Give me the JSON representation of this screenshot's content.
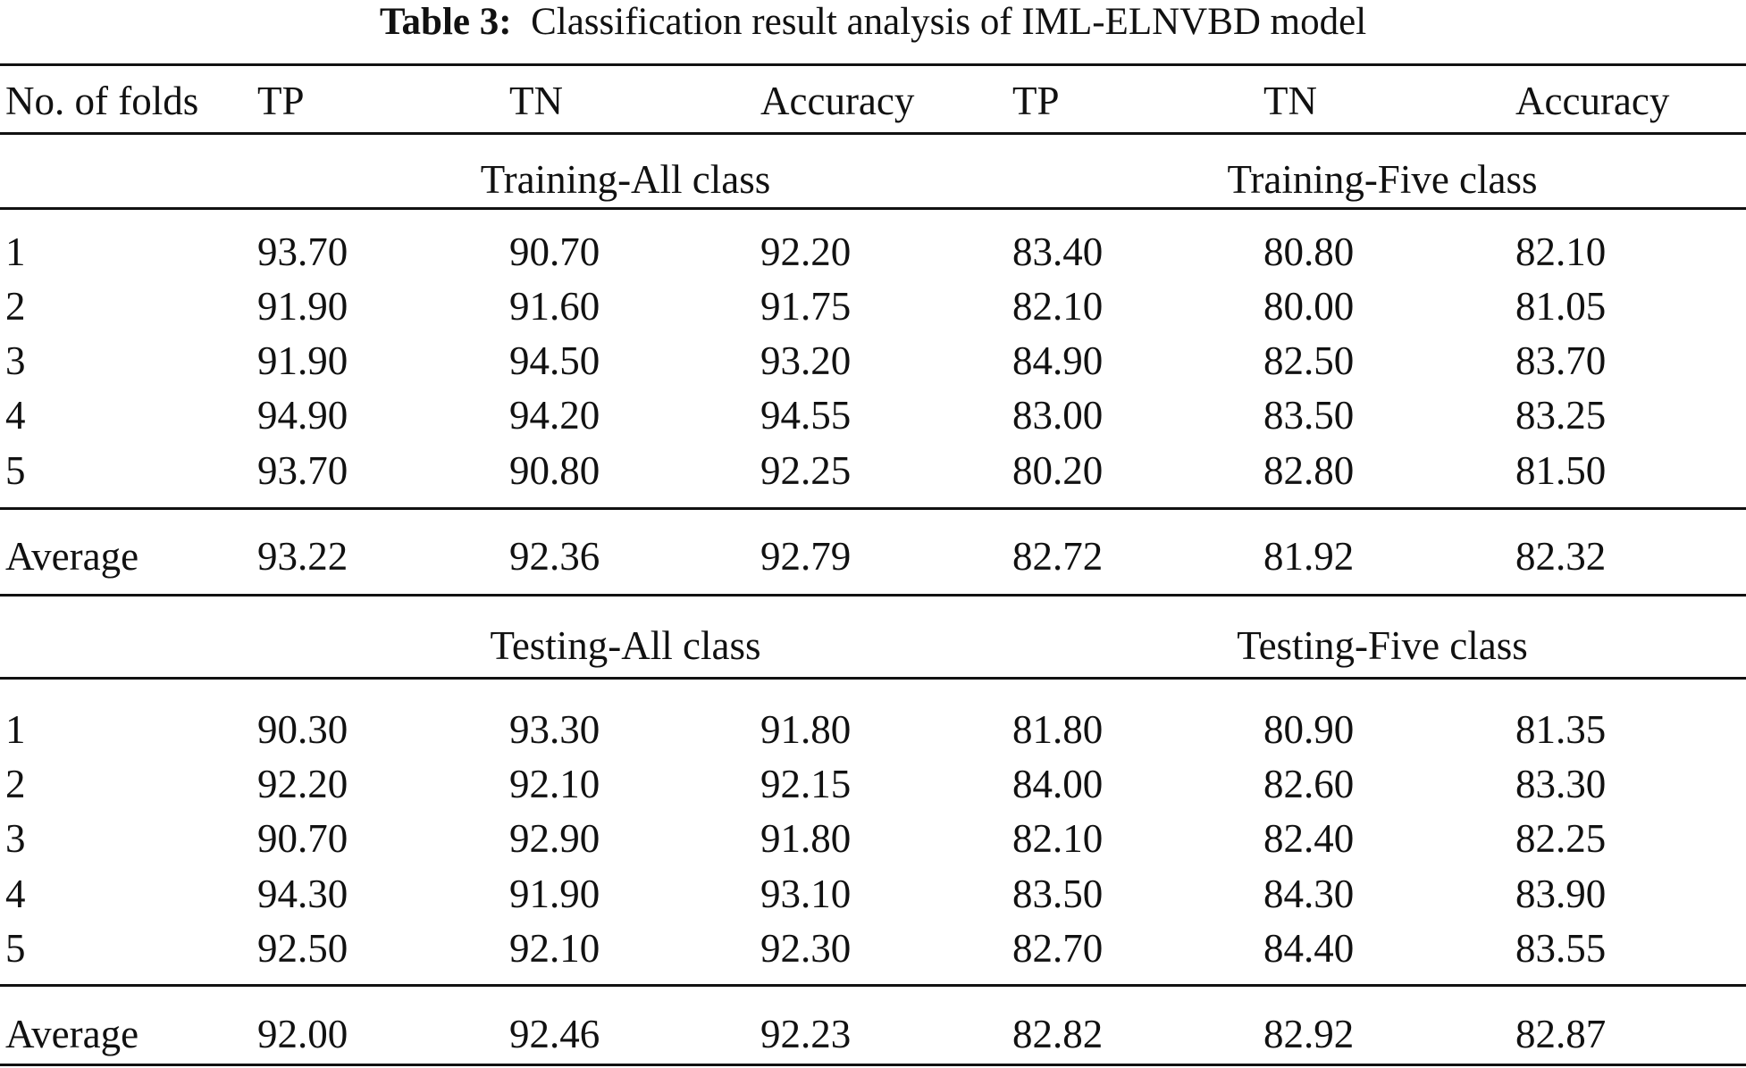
{
  "caption": {
    "label": "Table 3:",
    "text": "Classification result analysis of IML-ELNVBD model"
  },
  "header": [
    "No. of folds",
    "TP",
    "TN",
    "Accuracy",
    "TP",
    "TN",
    "Accuracy"
  ],
  "sections": [
    {
      "group_left": "Training-All class",
      "group_right": "Training-Five class",
      "rows": [
        [
          "1",
          "93.70",
          "90.70",
          "92.20",
          "83.40",
          "80.80",
          "82.10"
        ],
        [
          "2",
          "91.90",
          "91.60",
          "91.75",
          "82.10",
          "80.00",
          "81.05"
        ],
        [
          "3",
          "91.90",
          "94.50",
          "93.20",
          "84.90",
          "82.50",
          "83.70"
        ],
        [
          "4",
          "94.90",
          "94.20",
          "94.55",
          "83.00",
          "83.50",
          "83.25"
        ],
        [
          "5",
          "93.70",
          "90.80",
          "92.25",
          "80.20",
          "82.80",
          "81.50"
        ]
      ],
      "average": [
        "Average",
        "93.22",
        "92.36",
        "92.79",
        "82.72",
        "81.92",
        "82.32"
      ]
    },
    {
      "group_left": "Testing-All class",
      "group_right": "Testing-Five class",
      "rows": [
        [
          "1",
          "90.30",
          "93.30",
          "91.80",
          "81.80",
          "80.90",
          "81.35"
        ],
        [
          "2",
          "92.20",
          "92.10",
          "92.15",
          "84.00",
          "82.60",
          "83.30"
        ],
        [
          "3",
          "90.70",
          "92.90",
          "91.80",
          "82.10",
          "82.40",
          "82.25"
        ],
        [
          "4",
          "94.30",
          "91.90",
          "93.10",
          "83.50",
          "84.30",
          "83.90"
        ],
        [
          "5",
          "92.50",
          "92.10",
          "92.30",
          "82.70",
          "84.40",
          "83.55"
        ]
      ],
      "average": [
        "Average",
        "92.00",
        "92.46",
        "92.23",
        "82.82",
        "82.92",
        "82.87"
      ]
    }
  ]
}
